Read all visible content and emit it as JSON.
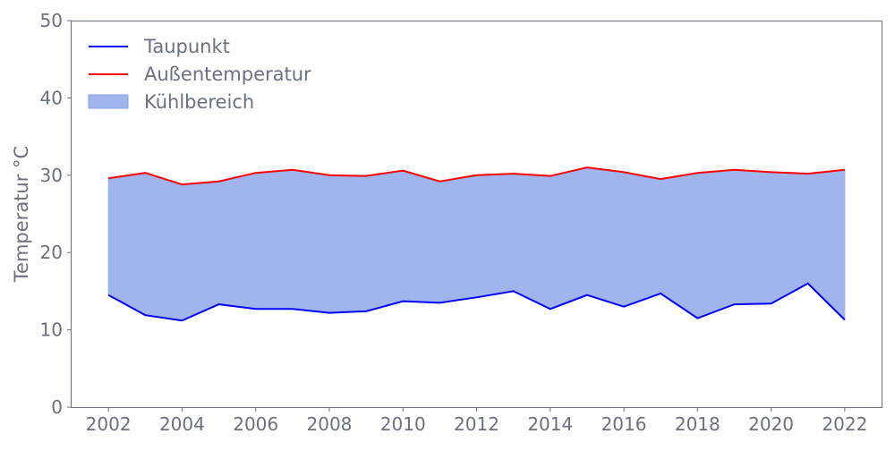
{
  "chart_data": {
    "type": "line",
    "title": "",
    "xlabel": "",
    "ylabel": "Temperatur °C",
    "xlim": [
      2001,
      2023
    ],
    "ylim": [
      0,
      50
    ],
    "xticks": [
      2002,
      2004,
      2006,
      2008,
      2010,
      2012,
      2014,
      2016,
      2018,
      2020,
      2022
    ],
    "yticks": [
      0,
      10,
      20,
      30,
      40,
      50
    ],
    "grid": false,
    "legend_position": "top-left",
    "x": [
      2002,
      2003,
      2004,
      2005,
      2006,
      2007,
      2008,
      2009,
      2010,
      2011,
      2012,
      2013,
      2014,
      2015,
      2016,
      2017,
      2018,
      2019,
      2020,
      2021,
      2022
    ],
    "series": [
      {
        "name": "Taupunkt",
        "color": "#0000ff",
        "values": [
          14.5,
          11.9,
          11.2,
          13.3,
          12.7,
          12.7,
          12.2,
          12.4,
          13.7,
          13.5,
          14.2,
          15.0,
          12.7,
          14.5,
          13.0,
          14.7,
          11.5,
          13.3,
          13.4,
          16.0,
          11.3
        ]
      },
      {
        "name": "Außentemperatur",
        "color": "#ff0000",
        "values": [
          29.6,
          30.3,
          28.8,
          29.2,
          30.3,
          30.7,
          30.0,
          29.9,
          30.6,
          29.2,
          30.0,
          30.2,
          29.9,
          31.0,
          30.4,
          29.5,
          30.3,
          30.7,
          30.4,
          30.2,
          30.7
        ]
      }
    ],
    "fill": {
      "name": "Kühlbereich",
      "color": "#a0b4ee",
      "between": [
        "Taupunkt",
        "Außentemperatur"
      ]
    }
  }
}
